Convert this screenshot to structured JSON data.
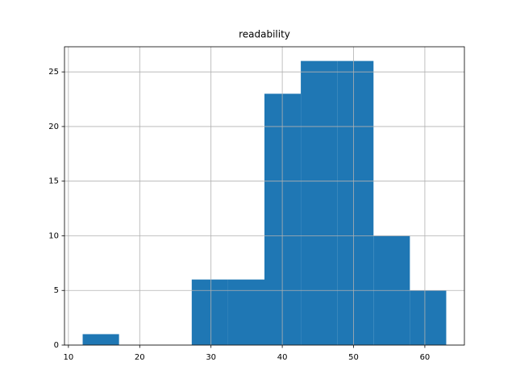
{
  "chart_data": {
    "type": "histogram",
    "title": "readability",
    "bins": [
      12,
      17.1,
      22.2,
      27.3,
      32.4,
      37.5,
      42.6,
      47.7,
      52.8,
      57.9,
      63
    ],
    "values": [
      1,
      0,
      0,
      6,
      6,
      23,
      26,
      26,
      10,
      5
    ],
    "color": "#1f77b4",
    "xlim": [
      9.45,
      65.55
    ],
    "xticks": [
      10,
      20,
      30,
      40,
      50,
      60
    ],
    "ylim": [
      0,
      27.3
    ],
    "yticks": [
      0,
      5,
      10,
      15,
      20,
      25
    ],
    "grid": true
  }
}
